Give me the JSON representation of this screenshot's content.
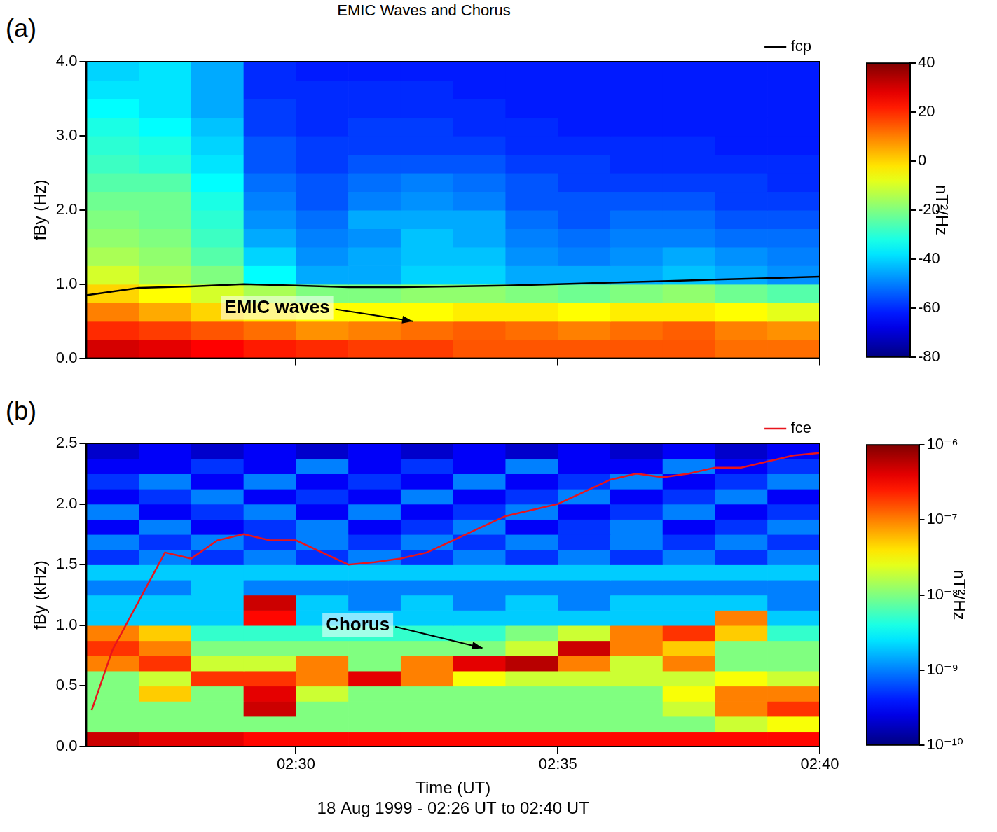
{
  "title": "EMIC Waves and Chorus",
  "chart_data": [
    {
      "type": "heatmap",
      "panel": "(a)",
      "ylabel": "fBy (Hz)",
      "xlim": [
        26,
        40
      ],
      "xticks": [
        30,
        35,
        40
      ],
      "ylim": [
        0,
        4
      ],
      "yticks": [
        {
          "value": 0,
          "label": "0.0"
        },
        {
          "value": 1,
          "label": "1.0"
        },
        {
          "value": 2,
          "label": "2.0"
        },
        {
          "value": 3,
          "label": "3.0"
        },
        {
          "value": 4,
          "label": "4.0"
        }
      ],
      "tick_labels": "y",
      "grid": false,
      "legend": "top",
      "annotations": [
        "EMIC waves"
      ],
      "cells": {
        "x_edges": [
          26,
          27,
          28,
          29,
          30,
          31,
          32,
          33,
          34,
          35,
          36,
          37,
          38,
          39,
          40
        ],
        "y_edges": [
          0,
          0.25,
          0.5,
          0.75,
          1,
          1.25,
          1.5,
          1.75,
          2,
          2.25,
          2.5,
          2.75,
          3,
          3.25,
          3.5,
          3.75,
          4
        ],
        "values": [
          [
            30,
            28,
            25,
            22,
            20,
            18,
            18,
            15,
            15,
            15,
            15,
            15,
            12,
            12
          ],
          [
            20,
            18,
            15,
            12,
            8,
            10,
            12,
            14,
            12,
            10,
            12,
            14,
            10,
            8
          ],
          [
            10,
            5,
            0,
            -3,
            -5,
            -5,
            -5,
            -3,
            -3,
            -5,
            -3,
            -3,
            -5,
            -8
          ],
          [
            0,
            -5,
            -10,
            -15,
            -20,
            -20,
            -18,
            -18,
            -20,
            -22,
            -20,
            -18,
            -22,
            -25
          ],
          [
            -10,
            -15,
            -20,
            -35,
            -45,
            -45,
            -40,
            -40,
            -45,
            -45,
            -45,
            -42,
            -45,
            -48
          ],
          [
            -15,
            -18,
            -25,
            -40,
            -48,
            -45,
            -42,
            -42,
            -48,
            -50,
            -48,
            -45,
            -48,
            -50
          ],
          [
            -18,
            -20,
            -28,
            -45,
            -50,
            -48,
            -42,
            -45,
            -50,
            -52,
            -50,
            -50,
            -52,
            -52
          ],
          [
            -20,
            -22,
            -30,
            -48,
            -52,
            -45,
            -45,
            -45,
            -52,
            -55,
            -52,
            -52,
            -55,
            -55
          ],
          [
            -22,
            -22,
            -32,
            -50,
            -55,
            -50,
            -48,
            -50,
            -55,
            -55,
            -55,
            -55,
            -58,
            -58
          ],
          [
            -25,
            -25,
            -35,
            -52,
            -55,
            -52,
            -50,
            -52,
            -55,
            -58,
            -58,
            -58,
            -58,
            -60
          ],
          [
            -28,
            -30,
            -38,
            -55,
            -58,
            -55,
            -55,
            -55,
            -58,
            -58,
            -60,
            -60,
            -60,
            -60
          ],
          [
            -30,
            -32,
            -40,
            -55,
            -58,
            -58,
            -58,
            -58,
            -60,
            -60,
            -60,
            -60,
            -62,
            -62
          ],
          [
            -32,
            -35,
            -42,
            -58,
            -60,
            -58,
            -58,
            -60,
            -60,
            -62,
            -62,
            -62,
            -62,
            -62
          ],
          [
            -35,
            -38,
            -45,
            -58,
            -60,
            -60,
            -60,
            -60,
            -62,
            -62,
            -62,
            -62,
            -62,
            -62
          ],
          [
            -38,
            -38,
            -45,
            -60,
            -60,
            -60,
            -60,
            -62,
            -62,
            -62,
            -62,
            -62,
            -62,
            -62
          ],
          [
            -40,
            -38,
            -45,
            -60,
            -62,
            -62,
            -62,
            -62,
            -62,
            -62,
            -62,
            -62,
            -62,
            -62
          ]
        ]
      },
      "colorbar": {
        "range": [
          -80,
          40
        ],
        "ticks": [
          -80,
          -60,
          -40,
          -20,
          0,
          20,
          40
        ],
        "label": "nT²/Hz"
      },
      "series": [
        {
          "name": "fcp",
          "color": "#000000",
          "line_style": "solid",
          "x": [
            26,
            27,
            28,
            29,
            30,
            31,
            32,
            33,
            34,
            35,
            36,
            37,
            38,
            39,
            40
          ],
          "values": [
            0.85,
            0.95,
            0.97,
            1.0,
            0.98,
            0.96,
            0.96,
            0.97,
            0.98,
            1.0,
            1.02,
            1.04,
            1.06,
            1.08,
            1.1
          ]
        }
      ]
    },
    {
      "type": "heatmap",
      "panel": "(b)",
      "ylabel": "fBy (kHz)",
      "xlabel": "Time (UT)",
      "caption": "18 Aug 1999 - 02:26 UT to 02:40 UT",
      "xlim": [
        26,
        40
      ],
      "xticks": [
        {
          "value": 30,
          "label": "02:30"
        },
        {
          "value": 35,
          "label": "02:35"
        },
        {
          "value": 40,
          "label": "02:40"
        }
      ],
      "ylim": [
        0,
        2.5
      ],
      "yticks": [
        {
          "value": 0,
          "label": "0.0"
        },
        0.5,
        {
          "value": 1,
          "label": "1.0"
        },
        1.5,
        {
          "value": 2,
          "label": "2.0"
        },
        2.5
      ],
      "grid": false,
      "legend": "top",
      "annotations": [
        "Chorus"
      ],
      "cells": {
        "x_edges": [
          26,
          27,
          28,
          29,
          30,
          31,
          32,
          33,
          34,
          35,
          36,
          37,
          38,
          39,
          40
        ],
        "y_edges": [
          0,
          0.125,
          0.25,
          0.375,
          0.5,
          0.625,
          0.75,
          0.875,
          1,
          1.125,
          1.25,
          1.375,
          1.5,
          1.625,
          1.75,
          1.875,
          2,
          2.125,
          2.25,
          2.375,
          2.5
        ],
        "values": [
          [
            5e-07,
            4e-07,
            4e-07,
            3e-07,
            3e-07,
            3e-07,
            3e-07,
            3e-07,
            3e-07,
            3e-07,
            3e-07,
            3e-07,
            3e-07,
            3e-07
          ],
          [
            1e-08,
            1e-08,
            1e-08,
            1e-08,
            1e-08,
            1e-08,
            1e-08,
            1e-08,
            1e-08,
            1e-08,
            1e-08,
            1e-08,
            2e-08,
            3e-08
          ],
          [
            1e-08,
            1e-08,
            1e-08,
            5e-07,
            1e-08,
            1e-08,
            1e-08,
            1e-08,
            1e-08,
            1e-08,
            1e-08,
            2e-08,
            1e-07,
            2e-07
          ],
          [
            1e-08,
            5e-08,
            1e-08,
            4e-07,
            2e-08,
            1e-08,
            1e-08,
            1e-08,
            1e-08,
            1e-08,
            1e-08,
            3e-08,
            1e-07,
            1e-07
          ],
          [
            1e-08,
            2e-08,
            2e-07,
            2e-07,
            1e-07,
            4e-07,
            1e-07,
            3e-08,
            2e-08,
            2e-08,
            2e-08,
            2e-08,
            3e-08,
            2e-08
          ],
          [
            1e-07,
            2e-07,
            2e-08,
            2e-08,
            1e-07,
            1e-08,
            1e-07,
            4e-07,
            6e-07,
            1e-07,
            2e-08,
            1e-07,
            1e-08,
            1e-08
          ],
          [
            2e-07,
            1e-07,
            1e-08,
            1e-08,
            1e-08,
            1e-08,
            1e-08,
            1e-08,
            2e-08,
            5e-07,
            1e-07,
            5e-08,
            1e-08,
            1e-08
          ],
          [
            1e-07,
            5e-08,
            5e-09,
            5e-09,
            5e-09,
            5e-09,
            5e-09,
            5e-09,
            1e-08,
            2e-08,
            1e-07,
            2e-07,
            5e-08,
            5e-09
          ],
          [
            2e-09,
            2e-09,
            2e-09,
            3e-07,
            2e-09,
            2e-09,
            2e-09,
            2e-09,
            2e-09,
            2e-09,
            2e-09,
            2e-09,
            1e-07,
            2e-09
          ],
          [
            2e-09,
            2e-09,
            2e-09,
            5e-07,
            2e-09,
            1e-09,
            2e-09,
            1e-09,
            2e-09,
            1e-09,
            2e-09,
            2e-09,
            2e-09,
            1e-09
          ],
          [
            1e-09,
            1e-09,
            2e-09,
            1e-09,
            1e-09,
            1e-09,
            1e-09,
            1e-09,
            1e-09,
            1e-09,
            1e-09,
            1e-09,
            1e-09,
            1e-09
          ],
          [
            2e-09,
            2e-09,
            2e-09,
            2e-09,
            2e-09,
            2e-09,
            2e-09,
            2e-09,
            2e-09,
            2e-09,
            2e-09,
            2e-09,
            2e-09,
            2e-09
          ],
          [
            5e-10,
            1e-09,
            5e-10,
            1e-09,
            5e-10,
            1e-09,
            5e-10,
            1e-09,
            5e-10,
            1e-09,
            5e-10,
            1e-09,
            5e-10,
            1e-09
          ],
          [
            1e-09,
            5e-10,
            1e-09,
            5e-10,
            1e-09,
            5e-10,
            1e-09,
            5e-10,
            1e-09,
            5e-10,
            1e-09,
            5e-10,
            1e-09,
            5e-10
          ],
          [
            3e-10,
            1e-09,
            3e-10,
            5e-10,
            1e-09,
            3e-10,
            5e-10,
            1e-09,
            3e-10,
            5e-10,
            1e-09,
            3e-10,
            5e-10,
            1e-09
          ],
          [
            1e-09,
            3e-10,
            5e-10,
            1e-09,
            3e-10,
            1e-09,
            3e-10,
            5e-10,
            1e-09,
            3e-10,
            5e-10,
            1e-09,
            3e-10,
            5e-10
          ],
          [
            3e-10,
            5e-10,
            1e-09,
            3e-10,
            5e-10,
            3e-10,
            1e-09,
            3e-10,
            5e-10,
            1e-09,
            3e-10,
            5e-10,
            1e-09,
            3e-10
          ],
          [
            5e-10,
            1e-09,
            3e-10,
            1e-09,
            3e-10,
            5e-10,
            3e-10,
            1e-09,
            3e-10,
            5e-10,
            1e-09,
            3e-10,
            5e-10,
            1e-09
          ],
          [
            3e-10,
            3e-10,
            5e-10,
            3e-10,
            1e-09,
            3e-10,
            5e-10,
            3e-10,
            1e-09,
            3e-10,
            3e-10,
            1e-09,
            3e-10,
            5e-10
          ],
          [
            2e-10,
            3e-10,
            2e-10,
            3e-10,
            2e-10,
            3e-10,
            2e-10,
            3e-10,
            2e-10,
            3e-10,
            2e-10,
            3e-10,
            2e-10,
            3e-10
          ]
        ]
      },
      "colorbar": {
        "range": [
          1e-10,
          1e-06
        ],
        "log": true,
        "ticks": [
          {
            "value": 1e-10,
            "label": "10⁻¹⁰"
          },
          {
            "value": 1e-09,
            "label": "10⁻⁹"
          },
          {
            "value": 1e-08,
            "label": "10⁻⁸"
          },
          {
            "value": 1e-07,
            "label": "10⁻⁷"
          },
          {
            "value": 1e-06,
            "label": "10⁻⁶"
          }
        ],
        "label": "nT²/Hz"
      },
      "series": [
        {
          "name": "fce",
          "color": "#e8141c",
          "line_style": "solid",
          "x": [
            26.1,
            26.5,
            27,
            27.5,
            28,
            28.5,
            29,
            29.5,
            30,
            30.5,
            31,
            31.5,
            32,
            32.5,
            33,
            33.5,
            34,
            34.5,
            35,
            35.5,
            36,
            36.5,
            37,
            37.5,
            38,
            38.5,
            39,
            39.5,
            40
          ],
          "values": [
            0.3,
            0.8,
            1.2,
            1.6,
            1.55,
            1.7,
            1.75,
            1.7,
            1.7,
            1.6,
            1.5,
            1.52,
            1.55,
            1.6,
            1.7,
            1.8,
            1.9,
            1.95,
            2.0,
            2.1,
            2.2,
            2.25,
            2.22,
            2.25,
            2.3,
            2.3,
            2.35,
            2.4,
            2.42
          ]
        }
      ]
    }
  ]
}
